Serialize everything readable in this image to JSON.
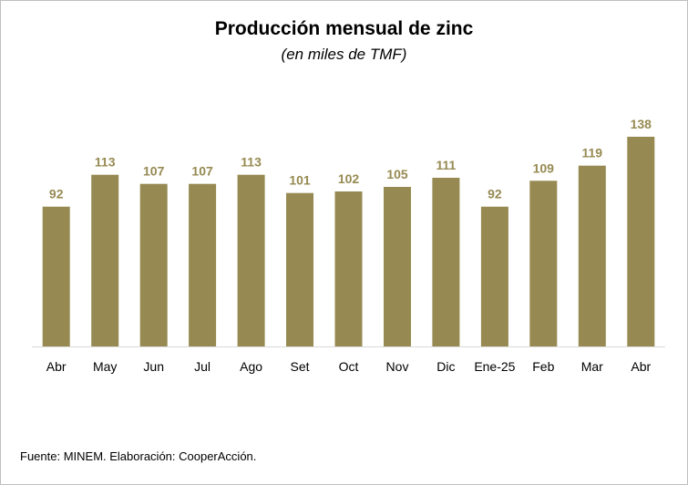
{
  "chart_data": {
    "type": "bar",
    "title": "Producción mensual de zinc",
    "subtitle": "(en miles de TMF)",
    "categories": [
      "Abr",
      "May",
      "Jun",
      "Jul",
      "Ago",
      "Set",
      "Oct",
      "Nov",
      "Dic",
      "Ene-25",
      "Feb",
      "Mar",
      "Abr"
    ],
    "values": [
      92,
      113,
      107,
      107,
      113,
      101,
      102,
      105,
      111,
      92,
      109,
      119,
      138
    ],
    "data_labels": [
      "92",
      "113",
      "107",
      "107",
      "113",
      "101",
      "102",
      "105",
      "111",
      "92",
      "109",
      "119",
      "138"
    ],
    "ylim": [
      0,
      138
    ],
    "grid": false,
    "legend": "none",
    "xlabel": "",
    "ylabel": "",
    "colors": {
      "bar": "#968a52",
      "label": "#968a52",
      "axis": "#d9d9d9"
    }
  },
  "source": "Fuente: MINEM. Elaboración: CooperAcción."
}
